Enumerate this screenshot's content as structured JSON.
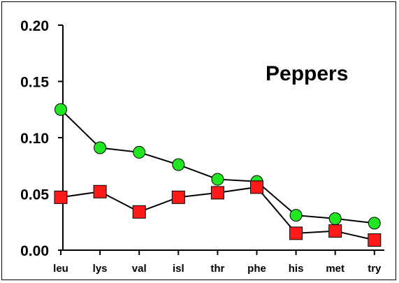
{
  "chart_data": {
    "type": "line",
    "title": "Peppers",
    "xlabel": "",
    "ylabel": "",
    "categories": [
      "leu",
      "lys",
      "val",
      "isl",
      "thr",
      "phe",
      "his",
      "met",
      "try"
    ],
    "ylim": [
      0,
      0.2
    ],
    "yticks": [
      "0.00",
      "0.05",
      "0.10",
      "0.15",
      "0.20"
    ],
    "grid": false,
    "series": [
      {
        "marker": "circle",
        "color": "#22e622",
        "values": [
          0.125,
          0.091,
          0.087,
          0.076,
          0.063,
          0.061,
          0.031,
          0.028,
          0.024
        ]
      },
      {
        "marker": "square",
        "color": "#ff1a1a",
        "values": [
          0.047,
          0.052,
          0.034,
          0.047,
          0.051,
          0.056,
          0.015,
          0.017,
          0.009
        ]
      }
    ]
  }
}
